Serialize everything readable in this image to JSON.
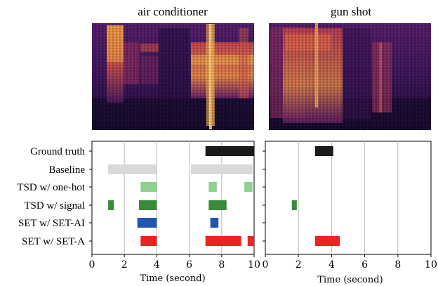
{
  "panels": [
    {
      "title": "air conditioner",
      "xlabel": "Time (second)",
      "xlim": [
        0,
        10
      ],
      "xticks": [
        "0",
        "2",
        "4",
        "6",
        "8",
        "10"
      ]
    },
    {
      "title": "gun shot",
      "xlabel": "Time (second)",
      "xlim": [
        0,
        10
      ],
      "xticks": [
        "0",
        "2",
        "4",
        "6",
        "8",
        "10"
      ]
    }
  ],
  "rows": [
    "Ground truth",
    "Baseline",
    "TSD w/ one-hot",
    "TSD w/ signal",
    "SET w/ SET-AI",
    "SET w/ SET-A"
  ],
  "colors": {
    "Ground truth": "#1a1a1a",
    "Baseline": "#d9d9d9",
    "TSD w/ one-hot": "#8fd08f",
    "TSD w/ signal": "#3a8a3a",
    "SET w/ SET-AI": "#2255b0",
    "SET w/ SET-A": "#ee2222",
    "grid": "#bbbbbb",
    "spectrogram_dark": "#1c0b3a",
    "spectrogram_bright": "#fcbf5a"
  },
  "chart_data": [
    {
      "type": "timeline",
      "title": "air conditioner",
      "xlabel": "Time (second)",
      "xlim": [
        0,
        10
      ],
      "grid": "vertical",
      "segments": [
        {
          "row": "Ground truth",
          "start": 7.0,
          "end": 10.0
        },
        {
          "row": "Baseline",
          "start": 1.0,
          "end": 4.0
        },
        {
          "row": "Baseline",
          "start": 6.1,
          "end": 9.9
        },
        {
          "row": "TSD w/ one-hot",
          "start": 3.0,
          "end": 4.0
        },
        {
          "row": "TSD w/ one-hot",
          "start": 7.2,
          "end": 7.7
        },
        {
          "row": "TSD w/ one-hot",
          "start": 9.4,
          "end": 9.9
        },
        {
          "row": "TSD w/ signal",
          "start": 1.0,
          "end": 1.35
        },
        {
          "row": "TSD w/ signal",
          "start": 2.9,
          "end": 4.0
        },
        {
          "row": "TSD w/ signal",
          "start": 7.2,
          "end": 8.3
        },
        {
          "row": "SET w/ SET-AI",
          "start": 2.8,
          "end": 4.0
        },
        {
          "row": "SET w/ SET-AI",
          "start": 7.3,
          "end": 7.8
        },
        {
          "row": "SET w/ SET-A",
          "start": 3.0,
          "end": 4.0
        },
        {
          "row": "SET w/ SET-A",
          "start": 7.0,
          "end": 9.2
        },
        {
          "row": "SET w/ SET-A",
          "start": 9.6,
          "end": 10.0
        }
      ]
    },
    {
      "type": "timeline",
      "title": "gun shot",
      "xlabel": "Time (second)",
      "xlim": [
        0,
        10
      ],
      "grid": "vertical",
      "segments": [
        {
          "row": "Ground truth",
          "start": 3.0,
          "end": 4.1
        },
        {
          "row": "TSD w/ signal",
          "start": 1.6,
          "end": 1.9
        },
        {
          "row": "SET w/ SET-A",
          "start": 3.0,
          "end": 4.5
        }
      ]
    }
  ]
}
